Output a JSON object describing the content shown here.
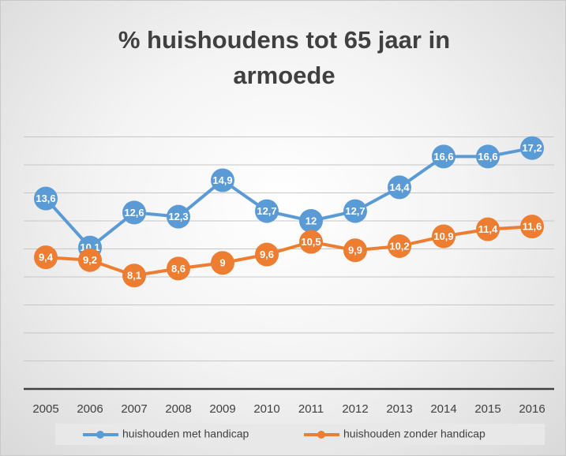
{
  "chart_data": {
    "type": "line",
    "title": "% huishoudens tot 65 jaar in armoede",
    "categories": [
      "2005",
      "2006",
      "2007",
      "2008",
      "2009",
      "2010",
      "2011",
      "2012",
      "2013",
      "2014",
      "2015",
      "2016"
    ],
    "series": [
      {
        "name": "huishouden met handicap",
        "color": "#5b9bd5",
        "values": [
          13.6,
          10.1,
          12.6,
          12.3,
          14.9,
          12.7,
          12,
          12.7,
          14.4,
          16.6,
          16.6,
          17.2
        ],
        "value_labels": [
          "13,6",
          "10,1",
          "12,6",
          "12,3",
          "14,9",
          "12,7",
          "12",
          "12,7",
          "14,4",
          "16,6",
          "16,6",
          "17,2"
        ]
      },
      {
        "name": "huishouden zonder handicap",
        "color": "#ed7d31",
        "values": [
          9.4,
          9.2,
          8.1,
          8.6,
          9,
          9.6,
          10.5,
          9.9,
          10.2,
          10.9,
          11.4,
          11.6
        ],
        "value_labels": [
          "9,4",
          "9,2",
          "8,1",
          "8,6",
          "9",
          "9,6",
          "10,5",
          "9,9",
          "10,2",
          "10,9",
          "11,4",
          "11,6"
        ]
      }
    ],
    "ylim": [
      0,
      18
    ],
    "yticks": [
      0,
      2,
      4,
      6,
      8,
      10,
      12,
      14,
      16,
      18
    ],
    "grid": true,
    "legend": "bottom"
  }
}
